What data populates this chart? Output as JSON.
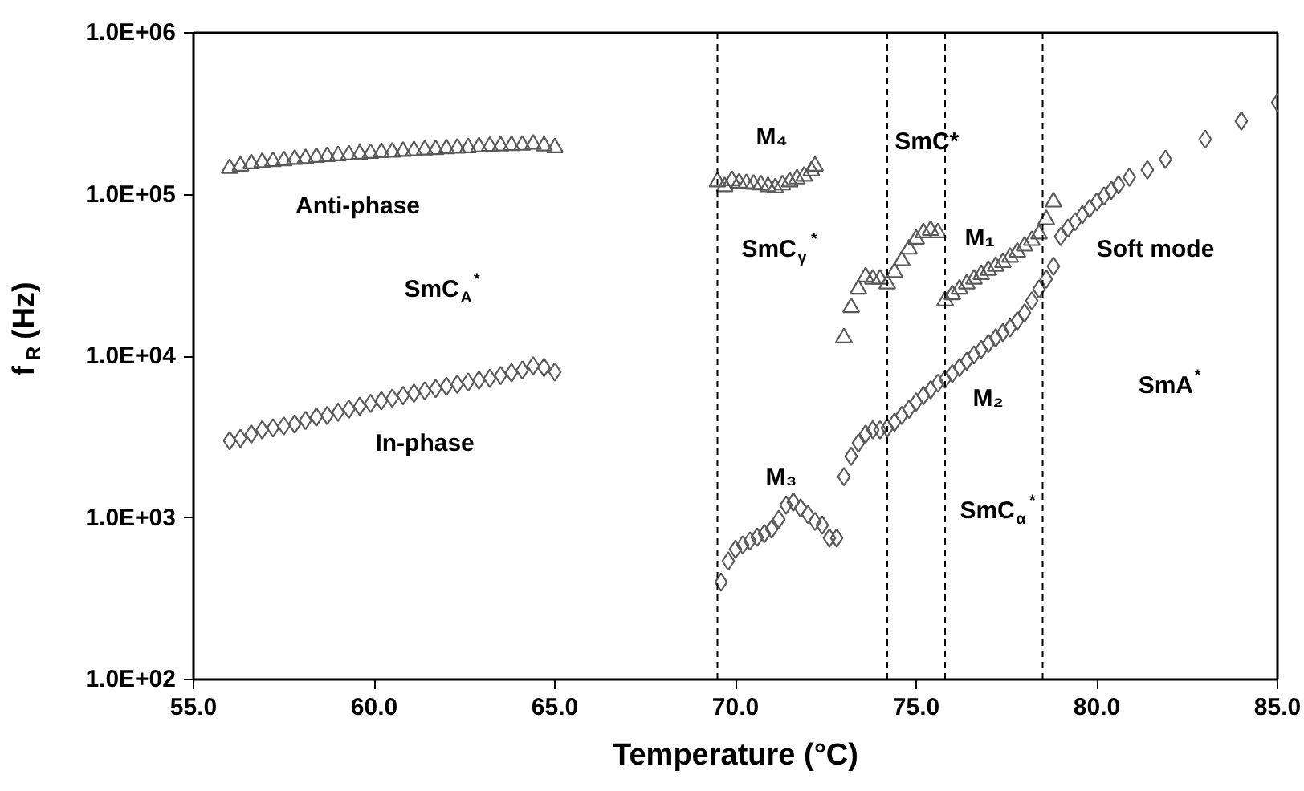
{
  "chart_data": {
    "type": "scatter",
    "xlabel": "Temperature (°C)",
    "ylabel": "f$_{R}$ (Hz)",
    "log": "y",
    "xlim": [
      55,
      85
    ],
    "ylim": [
      100,
      1000000
    ],
    "xticks": [
      {
        "value": 55,
        "label": "55.0"
      },
      {
        "value": 60,
        "label": "60.0"
      },
      {
        "value": 65,
        "label": "65.0"
      },
      {
        "value": 70,
        "label": "70.0"
      },
      {
        "value": 75,
        "label": "75.0"
      },
      {
        "value": 80,
        "label": "80.0"
      },
      {
        "value": 85,
        "label": "85.0"
      }
    ],
    "yticks": [
      {
        "value": 100,
        "label": "1.0E+02"
      },
      {
        "value": 1000,
        "label": "1.0E+03"
      },
      {
        "value": 10000,
        "label": "1.0E+04"
      },
      {
        "value": 100000,
        "label": "1.0E+05"
      },
      {
        "value": 1000000,
        "label": "1.0E+06"
      }
    ],
    "series": [
      {
        "color": "#595959",
        "marker": "triangle",
        "x": [
          56.0,
          56.3,
          56.6,
          56.9,
          57.2,
          57.5,
          57.8,
          58.1,
          58.4,
          58.7,
          59.0,
          59.3,
          59.6,
          59.9,
          60.2,
          60.5,
          60.8,
          61.1,
          61.4,
          61.7,
          62.0,
          62.3,
          62.6,
          62.9,
          63.2,
          63.5,
          63.8,
          64.1,
          64.4,
          64.7,
          65.0
        ],
        "values": [
          145000,
          150000,
          155000,
          158000,
          160000,
          162000,
          165000,
          167000,
          170000,
          172000,
          174000,
          176000,
          178000,
          180000,
          182000,
          183000,
          185000,
          187000,
          189000,
          190000,
          192000,
          194000,
          195000,
          197000,
          199000,
          200000,
          201000,
          202000,
          205000,
          200000,
          195000
        ]
      },
      {
        "color": "#595959",
        "marker": "diamond",
        "x": [
          56.0,
          56.3,
          56.6,
          56.9,
          57.2,
          57.5,
          57.8,
          58.1,
          58.4,
          58.7,
          59.0,
          59.3,
          59.6,
          59.9,
          60.2,
          60.5,
          60.8,
          61.1,
          61.4,
          61.7,
          62.0,
          62.3,
          62.6,
          62.9,
          63.2,
          63.5,
          63.8,
          64.1,
          64.4,
          64.7,
          65.0
        ],
        "values": [
          3000,
          3100,
          3300,
          3500,
          3600,
          3700,
          3800,
          4000,
          4200,
          4300,
          4500,
          4700,
          4900,
          5100,
          5300,
          5500,
          5700,
          5900,
          6100,
          6300,
          6500,
          6700,
          6900,
          7100,
          7300,
          7600,
          7900,
          8200,
          8700,
          8500,
          8000
        ]
      },
      {
        "color": "#595959",
        "marker": "triangle",
        "x": [
          69.5,
          69.7,
          69.9,
          70.1,
          70.3,
          70.5,
          70.7,
          70.9,
          71.1,
          71.3,
          71.5,
          71.7,
          71.9,
          72.1,
          72.2
        ],
        "values": [
          120000,
          112000,
          122000,
          118000,
          117000,
          116000,
          115000,
          112000,
          110000,
          115000,
          120000,
          125000,
          130000,
          140000,
          150000
        ]
      },
      {
        "color": "#595959",
        "marker": "triangle",
        "x": [
          73.0,
          73.2,
          73.4,
          73.6,
          73.8,
          74.0,
          74.2,
          74.4,
          74.6,
          74.8,
          75.0,
          75.2,
          75.4,
          75.6
        ],
        "values": [
          13000,
          20000,
          26000,
          31000,
          30000,
          30000,
          28000,
          33000,
          39000,
          46000,
          53000,
          58000,
          60000,
          58000
        ]
      },
      {
        "color": "#595959",
        "marker": "triangle",
        "x": [
          75.8,
          76.0,
          76.2,
          76.4,
          76.6,
          76.8,
          77.0,
          77.2,
          77.4,
          77.6,
          77.8,
          78.0,
          78.2,
          78.4,
          78.6,
          78.8
        ],
        "values": [
          22000,
          24000,
          26000,
          28000,
          30000,
          32000,
          34000,
          36000,
          38000,
          41000,
          44000,
          48000,
          52000,
          57000,
          70000,
          90000
        ]
      },
      {
        "color": "#595959",
        "marker": "diamond",
        "x": [
          69.6,
          69.8,
          70.0,
          70.2,
          70.4,
          70.6,
          70.8,
          71.0,
          71.2,
          71.4,
          71.6,
          71.8,
          72.0,
          72.2,
          72.4,
          72.6,
          72.8
        ],
        "values": [
          400,
          540,
          640,
          680,
          720,
          760,
          800,
          850,
          980,
          1200,
          1250,
          1150,
          1050,
          950,
          900,
          750,
          750
        ]
      },
      {
        "color": "#595959",
        "marker": "diamond",
        "x": [
          73.0,
          73.2,
          73.4,
          73.6,
          73.8,
          74.0,
          74.2,
          74.4,
          74.6,
          74.8,
          75.0,
          75.2,
          75.4,
          75.6,
          75.8,
          76.0,
          76.2,
          76.4,
          76.6,
          76.8,
          77.0,
          77.2,
          77.4,
          77.6,
          77.8,
          78.0,
          78.2,
          78.4,
          78.6,
          78.8,
          79.0,
          79.2,
          79.4,
          79.6,
          79.8,
          80.0,
          80.2,
          80.4,
          80.6,
          80.9,
          81.4,
          81.9,
          83.0,
          84.0,
          85.0
        ],
        "values": [
          1800,
          2400,
          2900,
          3300,
          3500,
          3500,
          3600,
          3900,
          4300,
          4700,
          5200,
          5700,
          6200,
          6800,
          7200,
          7800,
          8500,
          9300,
          10200,
          11000,
          12000,
          13000,
          14000,
          15000,
          16500,
          18500,
          22000,
          26000,
          30000,
          36000,
          55000,
          62000,
          68000,
          75000,
          82000,
          90000,
          98000,
          106000,
          115000,
          128000,
          142000,
          165000,
          220000,
          285000,
          370000
        ]
      }
    ],
    "ref_lines": [
      {
        "axis": "x",
        "value": 69.5,
        "color": "#000000",
        "line_style": "dashed"
      },
      {
        "axis": "x",
        "value": 74.2,
        "color": "#000000",
        "line_style": "dashed"
      },
      {
        "axis": "x",
        "value": 75.8,
        "color": "#000000",
        "line_style": "dashed"
      },
      {
        "axis": "x",
        "value": 78.5,
        "color": "#000000",
        "line_style": "dashed"
      }
    ],
    "annotations": [
      "Anti-phase",
      "SmC$_{A}$$^{*}$",
      "In-phase",
      "M₄",
      "SmC*",
      "SmC$_{γ}$$^{*}$",
      "M₁",
      "Soft mode",
      "M₂",
      "SmA$^{*}$",
      "M₃",
      "SmC$_{α}$$^{*}$"
    ]
  }
}
